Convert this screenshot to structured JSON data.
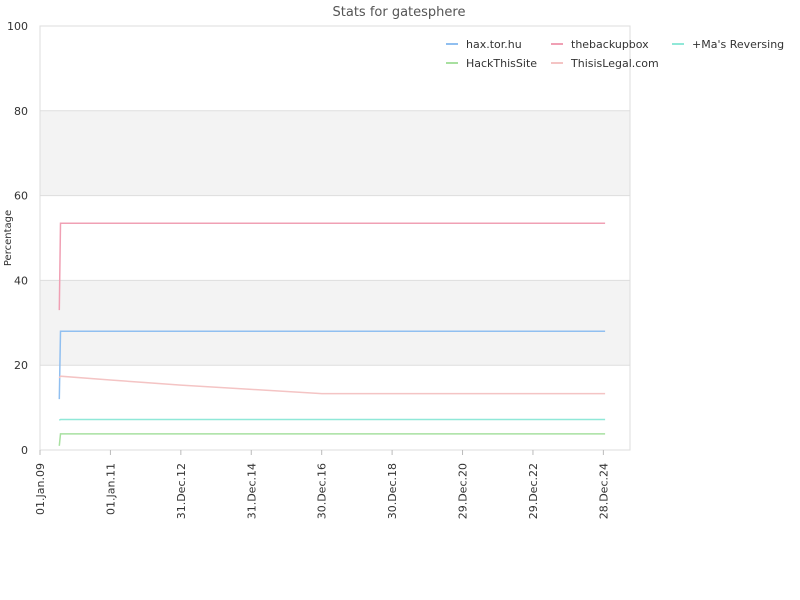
{
  "chart_data": {
    "type": "line",
    "title": "Stats for gatesphere",
    "xlabel": "",
    "ylabel": "Percentage",
    "ylim": [
      0,
      100
    ],
    "yticks": [
      0,
      20,
      40,
      60,
      80,
      100
    ],
    "xlim": [
      "2009-01-01",
      "2025-09-30"
    ],
    "xticks": [
      {
        "label": "01.Jan.09",
        "date": "2009-01-01"
      },
      {
        "label": "01.Jan.11",
        "date": "2011-01-01"
      },
      {
        "label": "31.Dec.12",
        "date": "2012-12-31"
      },
      {
        "label": "31.Dec.14",
        "date": "2014-12-31"
      },
      {
        "label": "30.Dec.16",
        "date": "2016-12-30"
      },
      {
        "label": "30.Dec.18",
        "date": "2018-12-30"
      },
      {
        "label": "29.Dec.20",
        "date": "2020-12-29"
      },
      {
        "label": "29.Dec.22",
        "date": "2022-12-29"
      },
      {
        "label": "28.Dec.24",
        "date": "2024-12-28"
      }
    ],
    "grid": true,
    "alternating_bands": true,
    "legend_position": "top-right",
    "series": [
      {
        "name": "hax.tor.hu",
        "color": "#90bff0",
        "points": [
          [
            "2009-07-20",
            12
          ],
          [
            "2009-08-01",
            28
          ],
          [
            "2025-01-15",
            28
          ]
        ]
      },
      {
        "name": "thebackupbox",
        "color": "#f0a0b4",
        "points": [
          [
            "2009-07-20",
            33
          ],
          [
            "2009-08-01",
            53.5
          ],
          [
            "2025-01-15",
            53.5
          ]
        ]
      },
      {
        "name": "+Ma's Reversing",
        "color": "#90e8d8",
        "points": [
          [
            "2009-07-20",
            7
          ],
          [
            "2009-08-01",
            7.2
          ],
          [
            "2025-01-15",
            7.2
          ]
        ]
      },
      {
        "name": "HackThisSite",
        "color": "#a8e0a0",
        "points": [
          [
            "2009-07-20",
            1
          ],
          [
            "2009-08-01",
            3.8
          ],
          [
            "2025-01-15",
            3.8
          ]
        ]
      },
      {
        "name": "ThisisLegal.com",
        "color": "#f4c4c4",
        "points": [
          [
            "2009-07-20",
            17
          ],
          [
            "2009-08-01",
            17.4
          ],
          [
            "2011-01-01",
            16.5
          ],
          [
            "2013-01-01",
            15.3
          ],
          [
            "2015-01-01",
            14.3
          ],
          [
            "2016-12-30",
            13.3
          ],
          [
            "2025-01-15",
            13.3
          ]
        ]
      }
    ]
  }
}
